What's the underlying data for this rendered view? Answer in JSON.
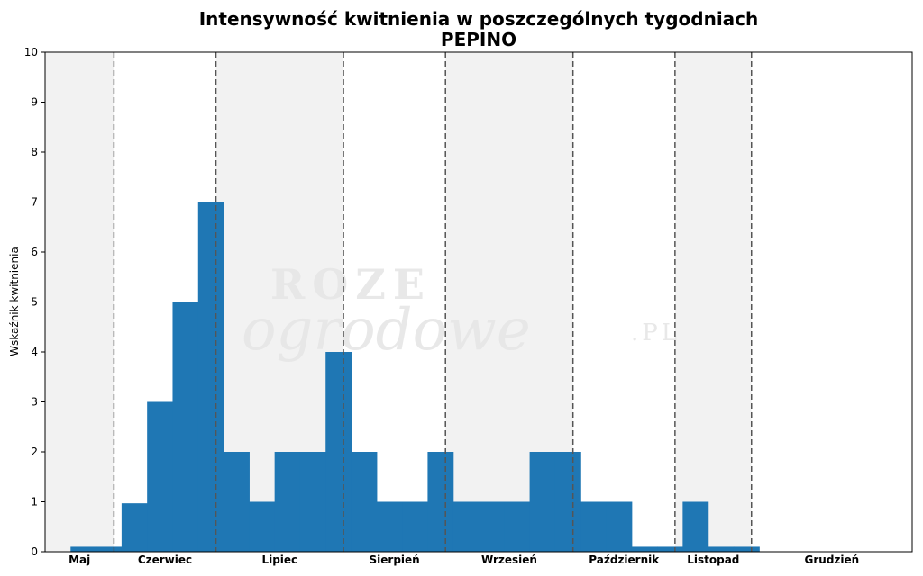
{
  "chart_data": {
    "type": "bar",
    "title": "Intensywność kwitnienia w poszczególnych tygodniach",
    "subtitle": "PEPINO",
    "ylabel": "Wskaźnik kwitnienia",
    "xlabel": "",
    "ylim": [
      0,
      10
    ],
    "yticks": [
      "0",
      "1",
      "2",
      "3",
      "4",
      "5",
      "6",
      "7",
      "8",
      "9",
      "10"
    ],
    "grid": false,
    "bar_color": "#1f77b4",
    "band_color": "#f2f2f2",
    "weeks": [
      18,
      19,
      20,
      21,
      22,
      23,
      24,
      25,
      26,
      27,
      28,
      29,
      30,
      31,
      32,
      33,
      34,
      35,
      36,
      37,
      38,
      39,
      40,
      41,
      42,
      43,
      44,
      45,
      46,
      47,
      48,
      49,
      50,
      51
    ],
    "values": [
      0,
      0.1,
      0.1,
      0.97,
      3,
      5,
      7,
      2,
      1,
      2,
      2,
      4,
      2,
      1,
      1,
      2,
      1,
      1,
      1,
      2,
      2,
      1,
      1,
      0.1,
      0.1,
      1,
      0.1,
      0.1,
      0,
      0,
      0,
      0,
      0,
      0
    ],
    "month_boundaries_week": [
      20.2,
      24.2,
      29.2,
      33.2,
      38.2,
      42.2,
      45.2
    ],
    "months": [
      {
        "label": "Maj",
        "shaded": true
      },
      {
        "label": "Czerwiec",
        "shaded": false
      },
      {
        "label": "Lipiec",
        "shaded": true
      },
      {
        "label": "Sierpień",
        "shaded": false
      },
      {
        "label": "Wrzesień",
        "shaded": true
      },
      {
        "label": "Październik",
        "shaded": false
      },
      {
        "label": "Listopad",
        "shaded": true
      },
      {
        "label": "Grudzień",
        "shaded": false
      }
    ],
    "watermark": [
      "ROZE",
      "ogrodowe",
      ".PL"
    ]
  }
}
